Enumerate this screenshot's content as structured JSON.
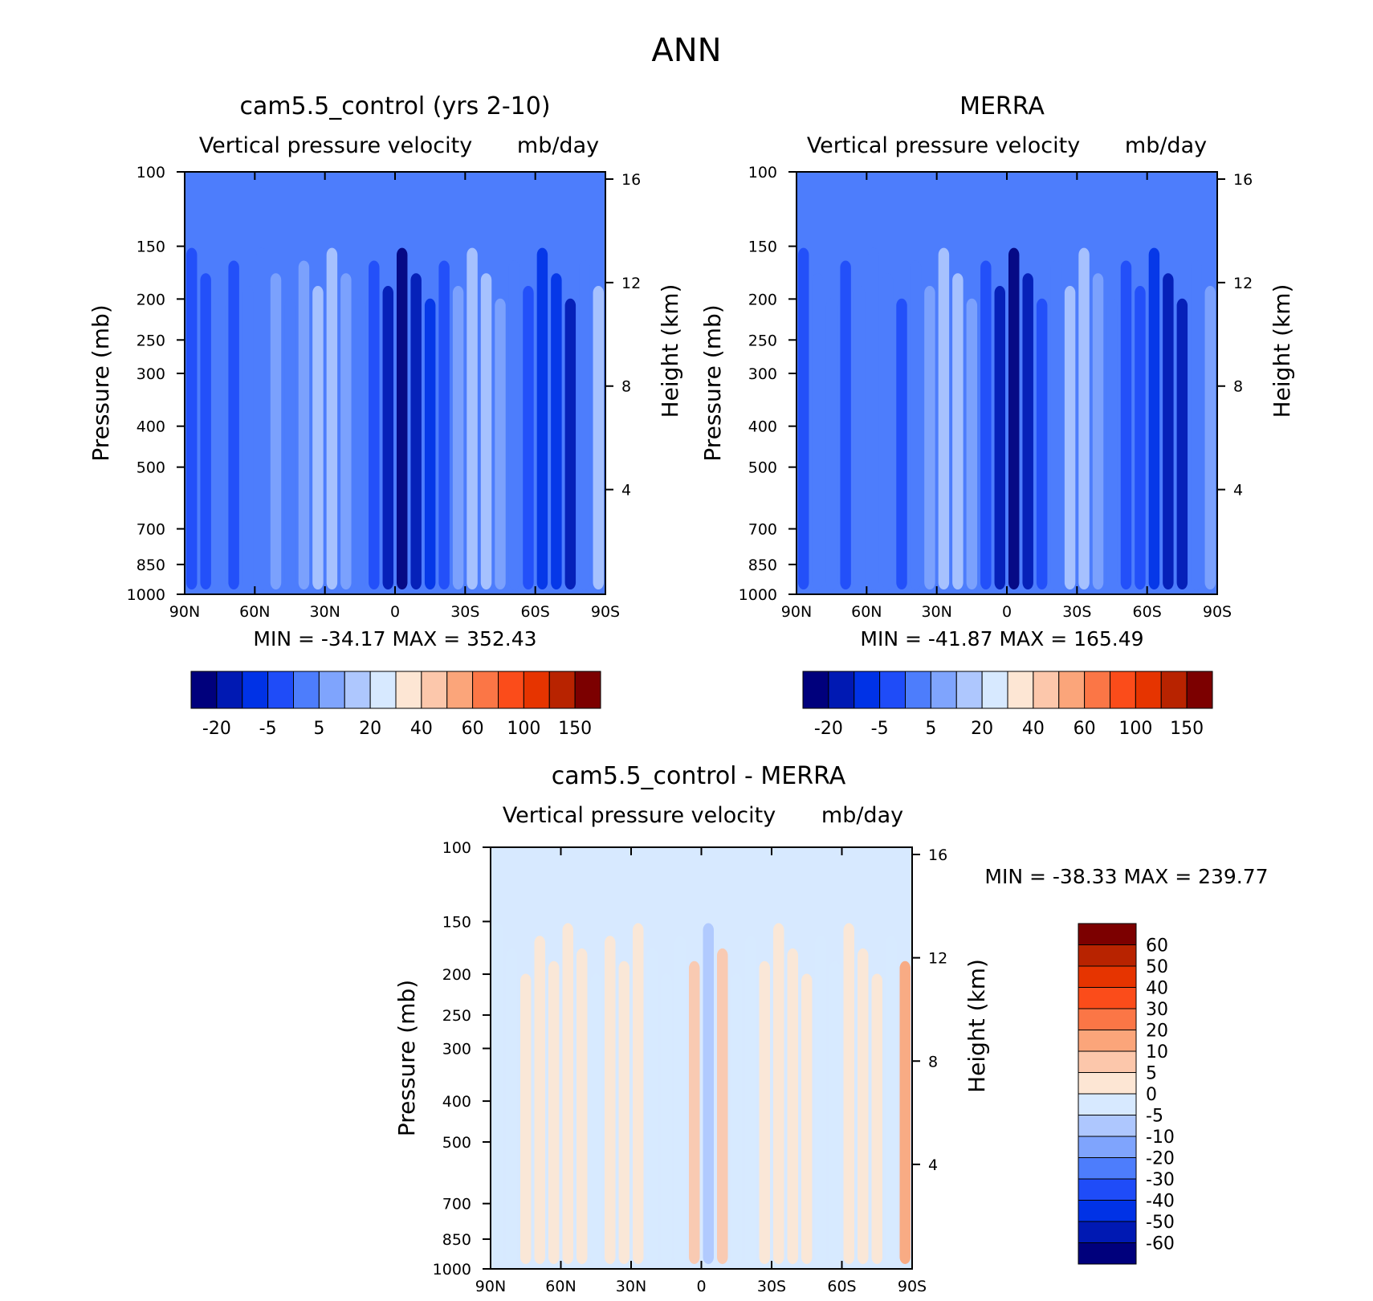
{
  "page_title": "ANN",
  "colors": {
    "abs_levels": [
      "#00007c",
      "#0019b3",
      "#0032e6",
      "#1f4cf8",
      "#4d7dfc",
      "#7fa4fd",
      "#aec7fe",
      "#d7e9ff",
      "#fde6d4",
      "#fcc7ab",
      "#fba57a",
      "#fb7646",
      "#fb4c1a",
      "#e63400",
      "#b82300",
      "#7c0000"
    ],
    "diff_levels": [
      "#00007c",
      "#0019b3",
      "#0032e6",
      "#1f4cf8",
      "#4d7dfc",
      "#7fa4fd",
      "#aec7fe",
      "#d7e9ff",
      "#fde6d4",
      "#fcc7ab",
      "#fba57a",
      "#fb7646",
      "#fb4c1a",
      "#e63400",
      "#b82300",
      "#7c0000"
    ]
  },
  "panels": {
    "model": {
      "title": "cam5.5_control (yrs 2-10)",
      "var_label": "Vertical pressure velocity",
      "units": "mb/day",
      "ylabel_left": "Pressure (mb)",
      "ylabel_right": "Height (km)",
      "stats": "MIN = -34.17   MAX = 352.43",
      "colorbar_labels": [
        "-20",
        "-5",
        "5",
        "20",
        "40",
        "60",
        "100",
        "150"
      ]
    },
    "obs": {
      "title": "MERRA",
      "var_label": "Vertical pressure velocity",
      "units": "mb/day",
      "ylabel_left": "Pressure (mb)",
      "ylabel_right": "Height (km)",
      "stats": "MIN = -41.87   MAX = 165.49",
      "colorbar_labels": [
        "-20",
        "-5",
        "5",
        "20",
        "40",
        "60",
        "100",
        "150"
      ]
    },
    "diff": {
      "title": "cam5.5_control - MERRA",
      "var_label": "Vertical pressure velocity",
      "units": "mb/day",
      "ylabel_left": "Pressure (mb)",
      "ylabel_right": "Height (km)",
      "stats": "MIN = -38.33   MAX = 239.77",
      "colorbar_labels": [
        "60",
        "50",
        "40",
        "30",
        "20",
        "10",
        "5",
        "0",
        "-5",
        "-10",
        "-20",
        "-30",
        "-40",
        "-50",
        "-60"
      ]
    }
  },
  "chart_data": [
    {
      "type": "heatmap",
      "title": "cam5.5_control (yrs 2-10)",
      "ylabel": "Pressure (mb)",
      "y2label": "Height (km)",
      "xticks": [
        "90N",
        "60N",
        "30N",
        "0",
        "30S",
        "60S",
        "90S"
      ],
      "yticks": [
        100,
        150,
        200,
        250,
        300,
        400,
        500,
        700,
        850,
        1000
      ],
      "y2ticks": [
        16,
        12,
        8,
        4
      ],
      "color_levels": [
        -20,
        -5,
        5,
        20,
        40,
        60,
        100,
        150
      ],
      "min": -34.17,
      "max": 352.43
    },
    {
      "type": "heatmap",
      "title": "MERRA",
      "ylabel": "Pressure (mb)",
      "y2label": "Height (km)",
      "xticks": [
        "90N",
        "60N",
        "30N",
        "0",
        "30S",
        "60S",
        "90S"
      ],
      "yticks": [
        100,
        150,
        200,
        250,
        300,
        400,
        500,
        700,
        850,
        1000
      ],
      "y2ticks": [
        16,
        12,
        8,
        4
      ],
      "color_levels": [
        -20,
        -5,
        5,
        20,
        40,
        60,
        100,
        150
      ],
      "min": -41.87,
      "max": 165.49
    },
    {
      "type": "heatmap",
      "title": "cam5.5_control - MERRA",
      "ylabel": "Pressure (mb)",
      "y2label": "Height (km)",
      "xticks": [
        "90N",
        "60N",
        "30N",
        "0",
        "30S",
        "60S",
        "90S"
      ],
      "yticks": [
        100,
        150,
        200,
        250,
        300,
        400,
        500,
        700,
        850,
        1000
      ],
      "y2ticks": [
        16,
        12,
        8,
        4
      ],
      "color_levels": [
        60,
        50,
        40,
        30,
        20,
        10,
        5,
        0,
        -5,
        -10,
        -20,
        -30,
        -40,
        -50,
        -60
      ],
      "min": -38.33,
      "max": 239.77
    }
  ]
}
